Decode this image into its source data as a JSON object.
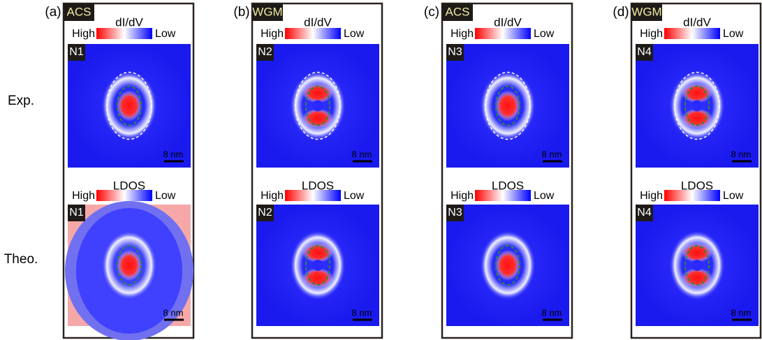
{
  "row_labels": [
    "Exp.",
    "Theo."
  ],
  "panels": [
    {
      "label": "(a)",
      "tag": "ACS",
      "exp": {
        "colorbar_title": "dI/dV",
        "high": "High",
        "low": "Low",
        "map_label": "N1",
        "scale": "8 nm"
      },
      "theo": {
        "colorbar_title": "LDOS",
        "high": "High",
        "low": "Low",
        "map_label": "N1",
        "scale": "8 nm"
      }
    },
    {
      "label": "(b)",
      "tag": "WGM",
      "exp": {
        "colorbar_title": "dI/dV",
        "high": "High",
        "low": "Low",
        "map_label": "N2",
        "scale": "8 nm"
      },
      "theo": {
        "colorbar_title": "LDOS",
        "high": "High",
        "low": "Low",
        "map_label": "N2",
        "scale": "8 nm"
      }
    },
    {
      "label": "(c)",
      "tag": "ACS",
      "exp": {
        "colorbar_title": "dI/dV",
        "high": "High",
        "low": "Low",
        "map_label": "N3",
        "scale": "8 nm"
      },
      "theo": {
        "colorbar_title": "LDOS",
        "high": "High",
        "low": "Low",
        "map_label": "N3",
        "scale": "8 nm"
      }
    },
    {
      "label": "(d)",
      "tag": "WGM",
      "exp": {
        "colorbar_title": "dI/dV",
        "high": "High",
        "low": "Low",
        "map_label": "N4",
        "scale": "8 nm"
      },
      "theo": {
        "colorbar_title": "LDOS",
        "high": "High",
        "low": "Low",
        "map_label": "N4",
        "scale": "8 nm"
      }
    }
  ]
}
